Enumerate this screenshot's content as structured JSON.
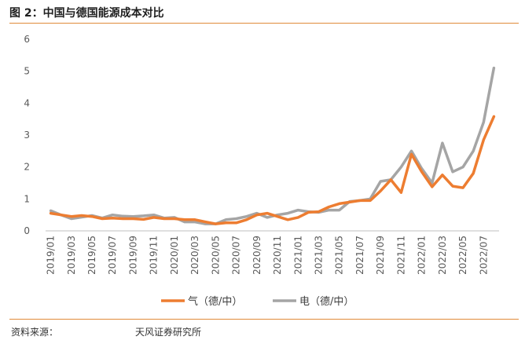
{
  "header": {
    "title": "图 2：中国与德国能源成本对比"
  },
  "footer": {
    "source_label": "资料来源：",
    "source_value": "天风证券研究所"
  },
  "colors": {
    "gas": "#ed7d31",
    "electricity": "#a5a5a5",
    "axis": "#bfbfbf",
    "rule": "#e08a3a"
  },
  "chart_data": {
    "type": "line",
    "title": "",
    "xlabel": "",
    "ylabel": "",
    "ylim": [
      0,
      6
    ],
    "yticks": [
      0,
      1,
      2,
      3,
      4,
      5,
      6
    ],
    "grid": false,
    "legend_position": "bottom",
    "x": [
      "2019/01",
      "2019/02",
      "2019/03",
      "2019/04",
      "2019/05",
      "2019/06",
      "2019/07",
      "2019/08",
      "2019/09",
      "2019/10",
      "2019/11",
      "2019/12",
      "2020/01",
      "2020/02",
      "2020/03",
      "2020/04",
      "2020/05",
      "2020/06",
      "2020/07",
      "2020/08",
      "2020/09",
      "2020/10",
      "2020/11",
      "2020/12",
      "2021/01",
      "2021/02",
      "2021/03",
      "2021/04",
      "2021/05",
      "2021/06",
      "2021/07",
      "2021/08",
      "2021/09",
      "2021/10",
      "2021/11",
      "2021/12",
      "2022/01",
      "2022/02",
      "2022/03",
      "2022/04",
      "2022/05",
      "2022/06",
      "2022/07",
      "2022/08"
    ],
    "xtick_labels": [
      "2019/01",
      "2019/03",
      "2019/05",
      "2019/07",
      "2019/09",
      "2019/11",
      "2020/01",
      "2020/03",
      "2020/05",
      "2020/07",
      "2020/09",
      "2020/11",
      "2021/01",
      "2021/03",
      "2021/05",
      "2021/07",
      "2021/09",
      "2021/11",
      "2022/01",
      "2022/03",
      "2022/05",
      "2022/07"
    ],
    "series": [
      {
        "name": "气（德/中）",
        "color": "#ed7d31",
        "values": [
          0.55,
          0.5,
          0.45,
          0.48,
          0.45,
          0.38,
          0.4,
          0.38,
          0.38,
          0.36,
          0.42,
          0.38,
          0.38,
          0.35,
          0.35,
          0.28,
          0.22,
          0.25,
          0.25,
          0.35,
          0.5,
          0.55,
          0.45,
          0.35,
          0.42,
          0.58,
          0.6,
          0.75,
          0.85,
          0.9,
          0.95,
          0.95,
          1.25,
          1.6,
          1.2,
          2.4,
          1.85,
          1.38,
          1.75,
          1.4,
          1.35,
          1.8,
          2.85,
          3.58
        ]
      },
      {
        "name": "电（德/中）",
        "color": "#a5a5a5",
        "values": [
          0.63,
          0.5,
          0.38,
          0.43,
          0.48,
          0.4,
          0.5,
          0.46,
          0.45,
          0.47,
          0.5,
          0.4,
          0.42,
          0.28,
          0.28,
          0.22,
          0.22,
          0.35,
          0.38,
          0.45,
          0.55,
          0.42,
          0.5,
          0.55,
          0.65,
          0.6,
          0.58,
          0.65,
          0.65,
          0.92,
          0.95,
          1.0,
          1.55,
          1.6,
          2.0,
          2.5,
          1.95,
          1.5,
          2.75,
          1.85,
          2.0,
          2.5,
          3.4,
          5.1
        ]
      }
    ]
  }
}
